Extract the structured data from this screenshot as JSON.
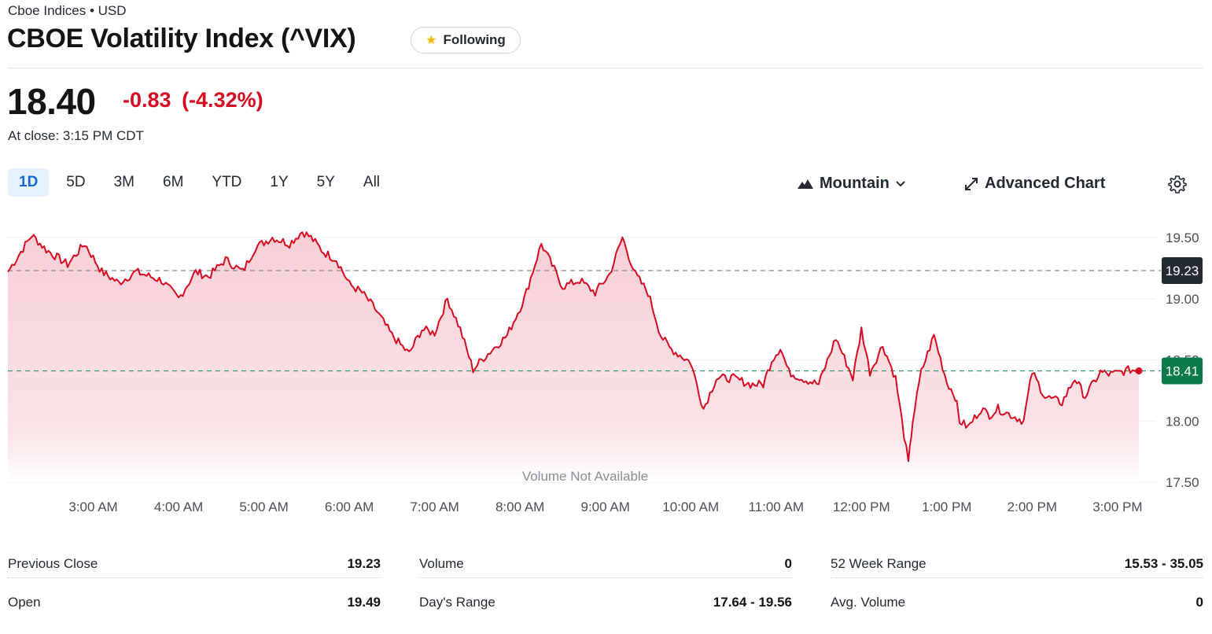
{
  "header": {
    "exchange": "Cboe Indices • USD",
    "title": "CBOE Volatility Index (^VIX)",
    "follow_label": "Following"
  },
  "quote": {
    "price": "18.40",
    "change": "-0.83",
    "change_pct": "(-4.32%)",
    "close_time": "At close: 3:15 PM CDT"
  },
  "ranges": [
    "1D",
    "5D",
    "3M",
    "6M",
    "YTD",
    "1Y",
    "5Y",
    "All"
  ],
  "active_range": "1D",
  "controls": {
    "chart_type_label": "Mountain",
    "advanced_label": "Advanced Chart"
  },
  "colors": {
    "line": "#d60a22",
    "fill": "#f7d3d8",
    "accent": "#1468d6",
    "last_badge": "#0b7a4b",
    "prev_badge": "#232a31"
  },
  "icons": {
    "chart_type": "mountain-icon",
    "chevron": "chevron-down-icon",
    "advanced": "expand-icon",
    "settings": "gear-icon",
    "star": "star-icon"
  },
  "chart_data": {
    "type": "area",
    "x_labels": [
      "3:00 AM",
      "4:00 AM",
      "5:00 AM",
      "6:00 AM",
      "7:00 AM",
      "8:00 AM",
      "9:00 AM",
      "10:00 AM",
      "11:00 AM",
      "12:00 PM",
      "1:00 PM",
      "2:00 PM",
      "3:00 PM"
    ],
    "y_ticks": [
      "19.50",
      "19.00",
      "18.50",
      "18.00",
      "17.50"
    ],
    "ylim": [
      17.5,
      19.5
    ],
    "prev_close": 19.23,
    "prev_close_label": "19.23",
    "last_value": 18.41,
    "last_label": "18.41",
    "volume_note": "Volume Not Available",
    "x_hours": [
      2.0,
      2.28,
      2.45,
      2.7,
      2.9,
      3.1,
      3.3,
      3.5,
      3.8,
      4.0,
      4.2,
      4.35,
      4.55,
      4.75,
      4.9,
      5.1,
      5.3,
      5.45,
      5.55,
      5.7,
      5.85,
      6.0,
      6.15,
      6.3,
      6.5,
      6.7,
      6.85,
      7.0,
      7.15,
      7.3,
      7.45,
      7.55,
      7.7,
      7.85,
      8.05,
      8.25,
      8.5,
      8.7,
      8.88,
      9.05,
      9.2,
      9.35,
      9.5,
      9.65,
      9.75,
      9.85,
      10.0,
      10.15,
      10.3,
      10.5,
      10.7,
      10.85,
      10.95,
      11.05,
      11.15,
      11.3,
      11.5,
      11.7,
      11.9,
      12.0,
      12.1,
      12.25,
      12.4,
      12.55,
      12.6,
      12.7,
      12.85,
      13.0,
      13.1,
      13.15,
      13.25,
      13.4,
      13.5,
      13.6,
      13.75,
      13.9,
      14.0,
      14.15,
      14.35,
      14.5,
      14.62,
      14.8,
      14.92,
      15.15,
      15.25
    ],
    "y": [
      19.22,
      19.52,
      19.4,
      19.28,
      19.45,
      19.22,
      19.13,
      19.22,
      19.15,
      19.0,
      19.22,
      19.18,
      19.32,
      19.22,
      19.42,
      19.5,
      19.45,
      19.55,
      19.5,
      19.38,
      19.32,
      19.12,
      19.05,
      18.92,
      18.7,
      18.55,
      18.75,
      18.72,
      19.0,
      18.75,
      18.42,
      18.5,
      18.6,
      18.7,
      19.0,
      19.45,
      19.1,
      19.15,
      19.05,
      19.2,
      19.5,
      19.2,
      19.05,
      18.7,
      18.6,
      18.55,
      18.48,
      18.1,
      18.35,
      18.35,
      18.3,
      18.3,
      18.5,
      18.6,
      18.4,
      18.35,
      18.3,
      18.68,
      18.35,
      18.75,
      18.4,
      18.62,
      18.35,
      17.65,
      18.0,
      18.4,
      18.7,
      18.32,
      18.2,
      18.0,
      17.95,
      18.1,
      18.05,
      18.1,
      18.05,
      18.0,
      18.4,
      18.2,
      18.15,
      18.35,
      18.2,
      18.4,
      18.38,
      18.42,
      18.41
    ]
  },
  "stats": [
    [
      {
        "label": "Previous Close",
        "value": "19.23"
      },
      {
        "label": "Open",
        "value": "19.49"
      }
    ],
    [
      {
        "label": "Volume",
        "value": "0"
      },
      {
        "label": "Day's Range",
        "value": "17.64 - 19.56"
      }
    ],
    [
      {
        "label": "52 Week Range",
        "value": "15.53 - 35.05"
      },
      {
        "label": "Avg. Volume",
        "value": "0"
      }
    ]
  ]
}
